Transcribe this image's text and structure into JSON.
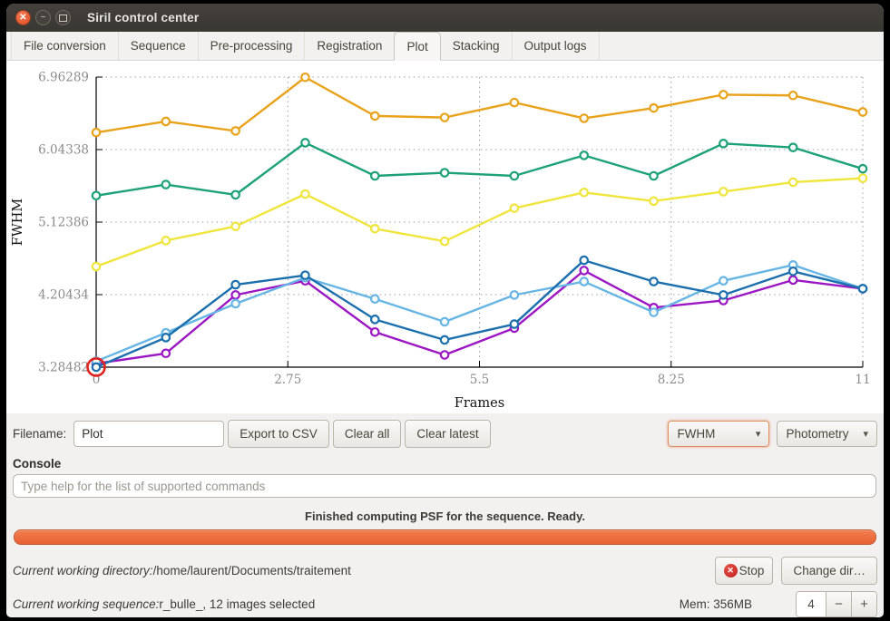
{
  "window": {
    "title": "Siril control center"
  },
  "icons": {
    "close": "✕",
    "minimize": "−",
    "dropdown": "▾",
    "stop": "✕"
  },
  "tabs": [
    {
      "label": "File conversion",
      "active": false
    },
    {
      "label": "Sequence",
      "active": false
    },
    {
      "label": "Pre-processing",
      "active": false
    },
    {
      "label": "Registration",
      "active": false
    },
    {
      "label": "Plot",
      "active": true
    },
    {
      "label": "Stacking",
      "active": false
    },
    {
      "label": "Output logs",
      "active": false
    }
  ],
  "chart_data": {
    "type": "line",
    "xlabel": "Frames",
    "ylabel": "FWHM",
    "x": [
      0,
      1,
      2,
      3,
      4,
      5,
      6,
      7,
      8,
      9,
      10,
      11
    ],
    "x_ticks": [
      0,
      2.75,
      5.5,
      8.25,
      11
    ],
    "x_tick_labels": [
      "0",
      "2.75",
      "5.5",
      "8.25",
      "11"
    ],
    "y_ticks": [
      3.28482,
      4.20434,
      5.12386,
      6.04338,
      6.96289
    ],
    "y_tick_labels": [
      "3.28482",
      "4.20434",
      "5.12386",
      "6.04338",
      "6.96289"
    ],
    "ylim": [
      3.28482,
      6.96289
    ],
    "xlim": [
      0,
      11
    ],
    "grid": "dotted",
    "legend": "none",
    "series": [
      {
        "name": "orange",
        "color": "#E9A21B",
        "values": [
          6.26,
          6.4,
          6.28,
          6.96,
          6.47,
          6.45,
          6.64,
          6.44,
          6.57,
          6.74,
          6.73,
          6.52
        ]
      },
      {
        "name": "green",
        "color": "#1CA179",
        "values": [
          5.46,
          5.6,
          5.47,
          6.13,
          5.71,
          5.75,
          5.71,
          5.97,
          5.71,
          6.12,
          6.07,
          5.8
        ]
      },
      {
        "name": "yellow",
        "color": "#EFE53C",
        "values": [
          4.56,
          4.89,
          5.07,
          5.48,
          5.04,
          4.88,
          5.3,
          5.5,
          5.39,
          5.51,
          5.63,
          5.68
        ]
      },
      {
        "name": "purple",
        "color": "#9C16C3",
        "values": [
          3.33,
          3.46,
          4.2,
          4.38,
          3.73,
          3.44,
          3.78,
          4.51,
          4.04,
          4.13,
          4.39,
          4.28
        ]
      },
      {
        "name": "light-blue",
        "color": "#66B5E4",
        "values": [
          3.36,
          3.72,
          4.09,
          4.42,
          4.15,
          3.86,
          4.2,
          4.37,
          3.98,
          4.38,
          4.58,
          4.28
        ]
      },
      {
        "name": "blue",
        "color": "#1B6FAD",
        "values": [
          3.285,
          3.66,
          4.33,
          4.45,
          3.89,
          3.63,
          3.83,
          4.64,
          4.37,
          4.2,
          4.5,
          4.28
        ]
      }
    ],
    "highlight": {
      "series": "blue",
      "point_index": 0,
      "color": "#E0231F"
    }
  },
  "controls": {
    "filename_label": "Filename:",
    "filename_value": "Plot",
    "export_csv": "Export to CSV",
    "clear_all": "Clear all",
    "clear_latest": "Clear latest",
    "plot_metric": "FWHM",
    "photometry": "Photometry"
  },
  "console": {
    "label": "Console",
    "placeholder": "Type help for the list of supported commands"
  },
  "status": {
    "message": "Finished computing PSF for the sequence. Ready.",
    "progress_percent": 100,
    "progress_color": "#EE6B3B"
  },
  "footer": {
    "cwd_label": "Current working directory:",
    "cwd_value": "/home/laurent/Documents/traitement",
    "stop_label": "Stop",
    "change_dir_label": "Change dir…",
    "seq_label": "Current working sequence:",
    "seq_value": "r_bulle_, 12 images selected",
    "mem_label": "Mem: 356MB",
    "threads_value": "4",
    "spin_minus": "−",
    "spin_plus": "+"
  }
}
